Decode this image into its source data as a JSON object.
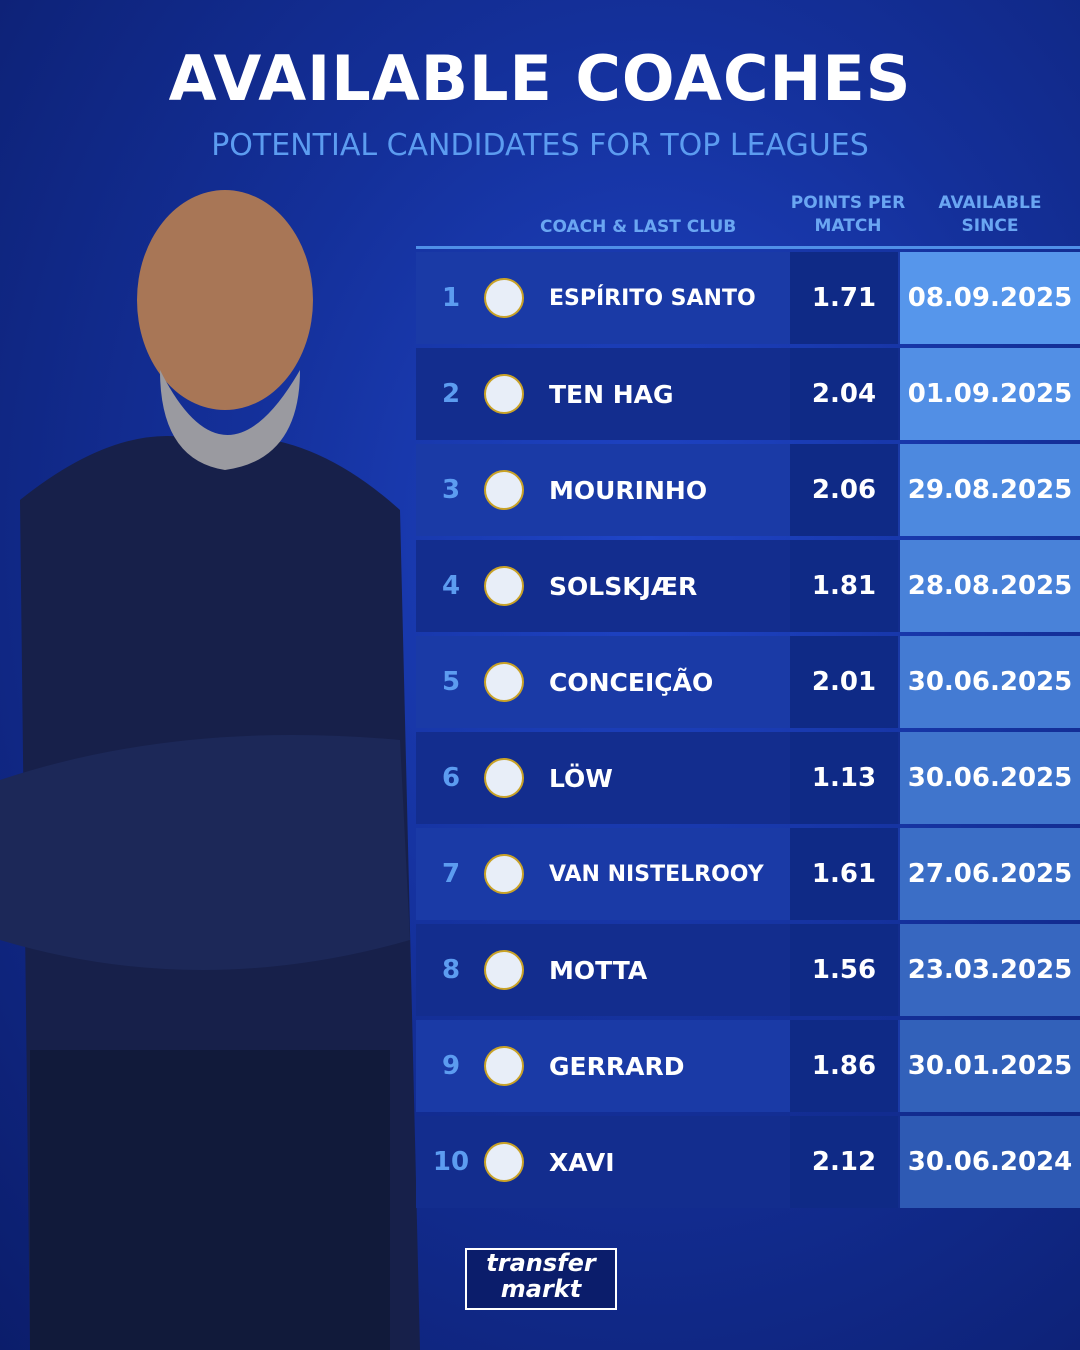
{
  "header": {
    "title": "AVAILABLE COACHES",
    "subtitle": "POTENTIAL CANDIDATES FOR TOP LEAGUES"
  },
  "table": {
    "columns": [
      "COACH & LAST CLUB",
      "POINTS PER MATCH",
      "AVAILABLE SINCE"
    ],
    "rows": [
      [
        1,
        "ESPÍRITO SANTO",
        1.71,
        "08.09.2025"
      ],
      [
        2,
        "TEN HAG",
        2.04,
        "01.09.2025"
      ],
      [
        3,
        "MOURINHO",
        2.06,
        "29.08.2025"
      ],
      [
        4,
        "SOLSKJÆR",
        1.81,
        "28.08.2025"
      ],
      [
        5,
        "CONCEIÇÃO",
        2.01,
        "30.06.2025"
      ],
      [
        6,
        "LÖW",
        1.13,
        "30.06.2025"
      ],
      [
        7,
        "VAN NISTELROOY",
        1.61,
        "27.06.2025"
      ],
      [
        8,
        "MOTTA",
        1.56,
        "23.03.2025"
      ],
      [
        9,
        "GERRARD",
        1.86,
        "30.01.2025"
      ],
      [
        10,
        "XAVI",
        2.12,
        "30.06.2024"
      ]
    ]
  },
  "logo": {
    "line1": "transfer",
    "line2": "markt"
  }
}
